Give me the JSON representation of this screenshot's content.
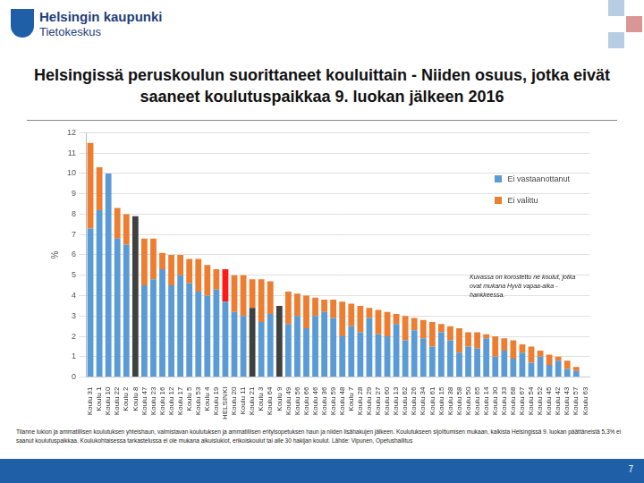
{
  "header": {
    "organization": "Helsingin kaupunki",
    "unit": "Tietokeskus"
  },
  "chart_data": {
    "type": "bar",
    "title": "Helsingissä peruskoulun suorittaneet kouluittain - Niiden osuus, jotka eivät saaneet koulutuspaikkaa 9. luokan jälkeen 2016",
    "ylabel": "%",
    "stacked": true,
    "grid": true,
    "legend": "upper right",
    "ylim": [
      0,
      12
    ],
    "yticks": [
      0,
      1,
      2,
      3,
      4,
      5,
      6,
      7,
      8,
      9,
      10,
      11,
      12
    ],
    "annotations": [
      "Kuvassa on korostettu ne koulut, jotka ovat mukana Hyvä vapaa-aika -hankkeessa."
    ],
    "categories": [
      "Koulu 31",
      "Koulu 1",
      "Koulu 10",
      "Koulu 22",
      "Koulu 2",
      "Koulu 8",
      "Koulu 47",
      "Koulu 23",
      "Koulu 16",
      "Koulu 12",
      "Koulu 17",
      "Koulu 5",
      "Koulu 53",
      "Koulu 4",
      "Koulu 19",
      "HELSINKI",
      "Koulu 20",
      "Koulu 11",
      "Koulu 21",
      "Koulu 3",
      "Koulu 64",
      "Koulu 9",
      "Koulu 49",
      "Koulu 56",
      "Koulu 66",
      "Koulu 46",
      "Koulu 36",
      "Koulu 59",
      "Koulu 48",
      "Koulu 7",
      "Koulu 28",
      "Koulu 29",
      "Koulu 27",
      "Koulu 60",
      "Koulu 13",
      "Koulu 62",
      "Koulu 26",
      "Koulu 34",
      "Koulu 61",
      "Koulu 15",
      "Koulu 38",
      "Koulu 58",
      "Koulu 50",
      "Koulu 65",
      "Koulu 14",
      "Koulu 30",
      "Koulu 33",
      "Koulu 68",
      "Koulu 67",
      "Koulu 54",
      "Koulu 52",
      "Koulu 45",
      "Koulu 42",
      "Koulu 43",
      "Koulu 57",
      "Koulu 63"
    ],
    "series": [
      {
        "name": "Ei vastaanottanut",
        "color": "#5b9bd5",
        "values": [
          7.3,
          8.2,
          10.0,
          6.8,
          6.5,
          7.9,
          4.5,
          4.8,
          5.3,
          4.5,
          5.0,
          4.6,
          4.2,
          4.0,
          4.3,
          3.7,
          3.2,
          3.0,
          3.4,
          2.7,
          3.1,
          3.5,
          2.6,
          3.0,
          2.4,
          3.0,
          3.2,
          2.9,
          2.0,
          2.5,
          2.2,
          2.9,
          2.1,
          2.0,
          2.6,
          1.8,
          2.3,
          1.9,
          1.5,
          2.2,
          1.8,
          1.2,
          1.5,
          1.4,
          1.9,
          1.0,
          1.3,
          0.9,
          1.2,
          0.7,
          1.0,
          0.6,
          0.8,
          0.4,
          0.3,
          0
        ],
        "colors": [
          "#5b9bd5",
          "#5b9bd5",
          "#5b9bd5",
          "#5b9bd5",
          "#5b9bd5",
          "#404040",
          "#5b9bd5",
          "#5b9bd5",
          "#5b9bd5",
          "#5b9bd5",
          "#5b9bd5",
          "#5b9bd5",
          "#5b9bd5",
          "#5b9bd5",
          "#5b9bd5",
          "#5b9bd5",
          "#5b9bd5",
          "#5b9bd5",
          "#404040",
          "#5b9bd5",
          "#5b9bd5",
          "#404040",
          "#5b9bd5",
          "#5b9bd5",
          "#5b9bd5",
          "#5b9bd5",
          "#5b9bd5",
          "#5b9bd5",
          "#5b9bd5",
          "#5b9bd5",
          "#5b9bd5",
          "#5b9bd5",
          "#5b9bd5",
          "#5b9bd5",
          "#5b9bd5",
          "#5b9bd5",
          "#5b9bd5",
          "#5b9bd5",
          "#5b9bd5",
          "#5b9bd5",
          "#5b9bd5",
          "#5b9bd5",
          "#5b9bd5",
          "#5b9bd5",
          "#5b9bd5",
          "#5b9bd5",
          "#5b9bd5",
          "#5b9bd5",
          "#5b9bd5",
          "#5b9bd5",
          "#5b9bd5",
          "#5b9bd5",
          "#5b9bd5",
          "#5b9bd5",
          "#5b9bd5",
          "#5b9bd5"
        ]
      },
      {
        "name": "Ei valittu",
        "color": "#ed7d31",
        "values": [
          4.2,
          2.1,
          0,
          1.5,
          1.5,
          0,
          2.3,
          2.0,
          0.8,
          1.5,
          1.0,
          1.2,
          1.6,
          1.5,
          1.0,
          1.6,
          1.8,
          2.0,
          1.4,
          2.1,
          1.6,
          0,
          1.6,
          1.1,
          1.6,
          0.9,
          0.6,
          0.9,
          1.7,
          1.1,
          1.3,
          0.5,
          1.2,
          1.2,
          0.5,
          1.2,
          0.6,
          0.9,
          1.2,
          0.4,
          0.7,
          1.2,
          0.7,
          0.8,
          0.2,
          1.0,
          0.6,
          0.9,
          0.4,
          0.8,
          0.3,
          0.5,
          0.2,
          0.4,
          0.2,
          0
        ],
        "colors": [
          "#ed7d31",
          "#ed7d31",
          "#ed7d31",
          "#ed7d31",
          "#ed7d31",
          "#ed7d31",
          "#ed7d31",
          "#ed7d31",
          "#ed7d31",
          "#ed7d31",
          "#ed7d31",
          "#ed7d31",
          "#ed7d31",
          "#ed7d31",
          "#ed7d31",
          "#ff1a1a",
          "#ed7d31",
          "#ed7d31",
          "#ed7d31",
          "#ed7d31",
          "#ed7d31",
          "#ed7d31",
          "#ed7d31",
          "#ed7d31",
          "#ed7d31",
          "#ed7d31",
          "#ed7d31",
          "#ed7d31",
          "#ed7d31",
          "#ed7d31",
          "#ed7d31",
          "#ed7d31",
          "#ed7d31",
          "#ed7d31",
          "#ed7d31",
          "#ed7d31",
          "#ed7d31",
          "#ed7d31",
          "#ed7d31",
          "#ed7d31",
          "#ed7d31",
          "#ed7d31",
          "#ed7d31",
          "#ed7d31",
          "#ed7d31",
          "#ed7d31",
          "#ed7d31",
          "#ed7d31",
          "#ed7d31",
          "#ed7d31",
          "#ed7d31",
          "#ed7d31",
          "#ed7d31",
          "#ed7d31",
          "#ed7d31",
          "#ed7d31"
        ]
      }
    ]
  },
  "footnote": "Tilanne lukion ja ammatillisen koulutuksen yhteishaun, valmistavan koulutuksen ja ammatillisen erityisopetuksen haun ja niiden lisähakujen jälkeen. Koulutukseen sijoittumisen mukaan, kaikista Helsingissä 9. luokan päättäneistä 5,3% ei saanut koulutuspaikkaa. Koulukohtaisessa tarkastelussa ei ole mukana aikuislukiot, erikoiskoulut tai alle 30 hakijan koulut. Lähde: Vipunen, Opetushallitus",
  "page_number": 7
}
